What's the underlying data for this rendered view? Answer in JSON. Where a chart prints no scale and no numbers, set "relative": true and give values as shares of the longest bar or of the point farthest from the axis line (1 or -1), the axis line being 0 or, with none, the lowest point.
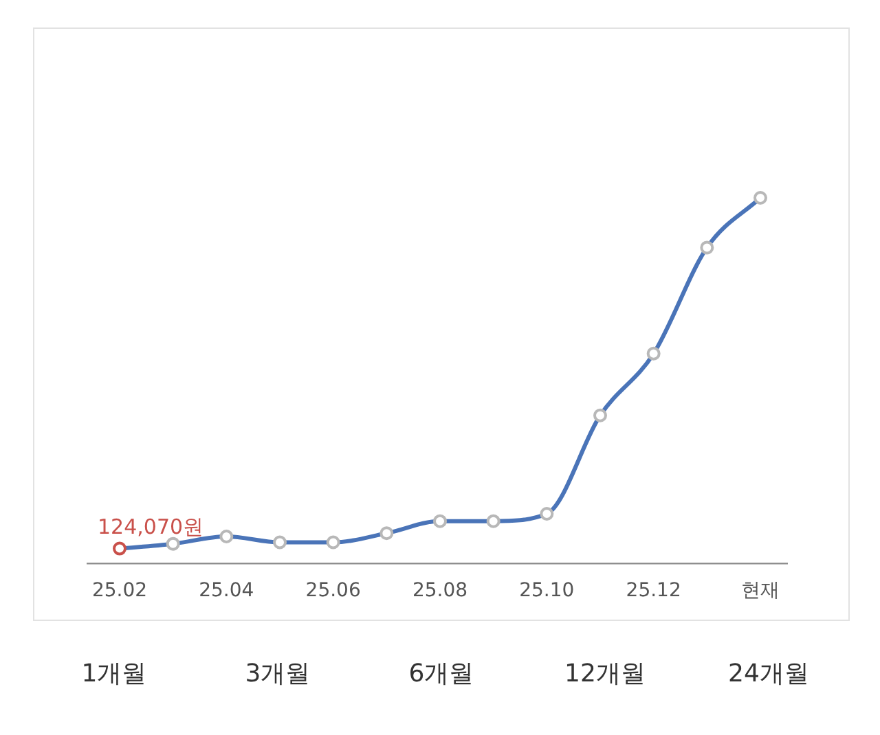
{
  "chart_data": {
    "type": "line",
    "relative": true,
    "categories": [
      "25.02",
      null,
      "25.04",
      null,
      "25.06",
      null,
      "25.08",
      null,
      "25.10",
      null,
      "25.12",
      null,
      "현재"
    ],
    "series": [
      {
        "color": "#4a74b8",
        "values": [
          0.041,
          0.054,
          0.074,
          0.058,
          0.058,
          0.083,
          0.116,
          0.116,
          0.136,
          0.405,
          0.574,
          0.864,
          1
        ]
      }
    ],
    "marker": "circle",
    "grid": false,
    "legend": false,
    "annotations": [
      "124,070원",
      "1개월",
      "3개월",
      "6개월",
      "12개월",
      "24개월"
    ]
  }
}
